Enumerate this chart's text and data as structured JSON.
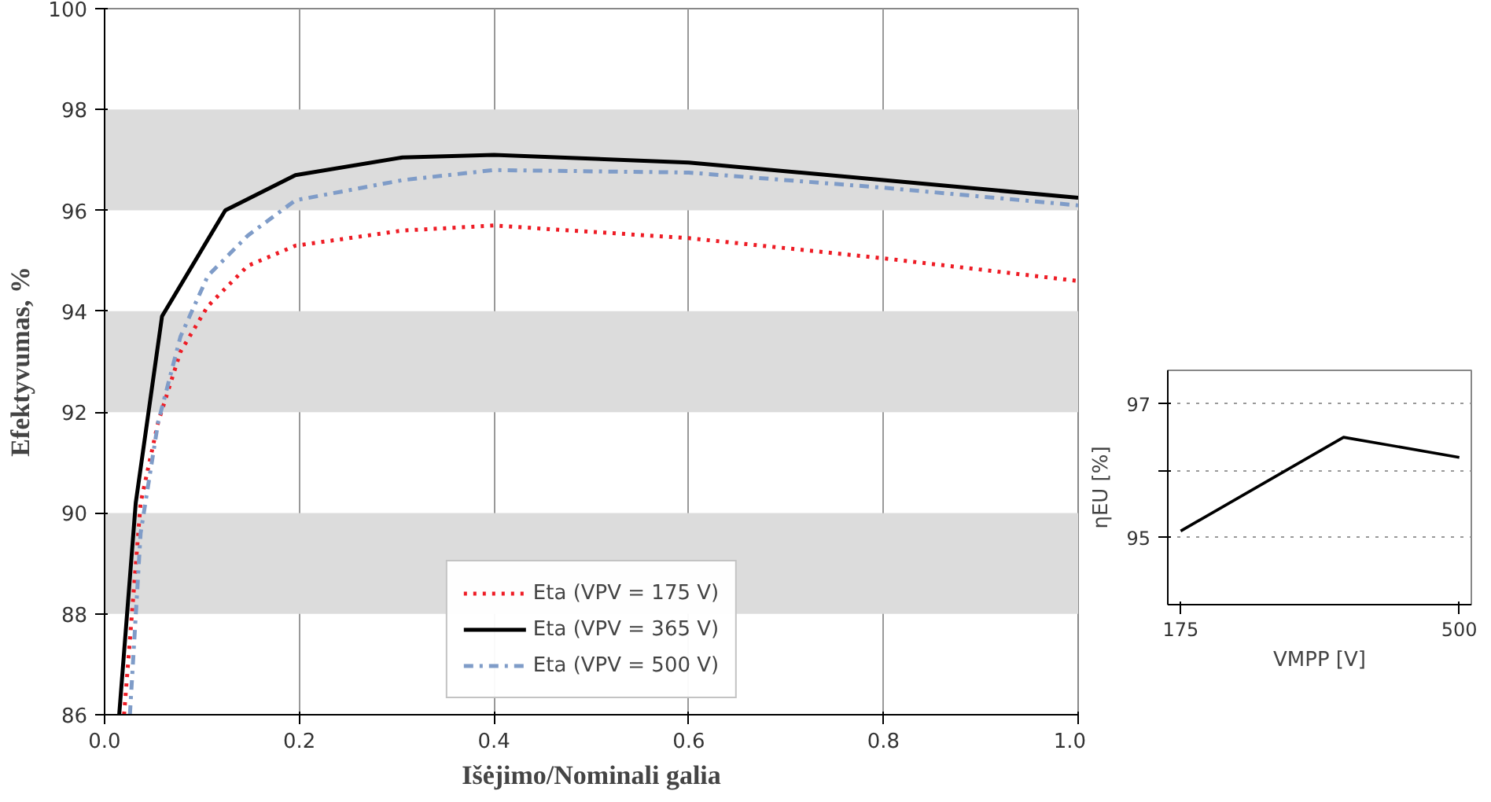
{
  "chart_data": [
    {
      "type": "line",
      "xlabel": "Išėjimo/Nominali galia",
      "ylabel": "Efektyvumas, %",
      "xlim": [
        0,
        1
      ],
      "ylim": [
        86,
        100
      ],
      "xticks": [
        {
          "value": 0,
          "label": "0.0"
        },
        0.2,
        0.4,
        0.6,
        0.8,
        {
          "value": 1,
          "label": "1.0"
        }
      ],
      "yticks": [
        86,
        88,
        90,
        92,
        94,
        96,
        98,
        100
      ],
      "grid": "x",
      "legend": "bottom",
      "bands": [
        {
          "axis": "y",
          "from": 88,
          "to": 90,
          "color": "#dcdcdc"
        },
        {
          "axis": "y",
          "from": 92,
          "to": 94,
          "color": "#dcdcdc"
        },
        {
          "axis": "y",
          "from": 96,
          "to": 98,
          "color": "#dcdcdc"
        }
      ],
      "x": [
        0.02,
        0.037,
        0.055,
        0.078,
        0.106,
        0.147,
        0.196,
        0.306,
        0.4,
        0.6,
        0.8,
        1.0
      ],
      "series": [
        {
          "name": "Eta (VPV = 175 V)",
          "color": "#ee1c25",
          "line_style": "dotted",
          "values": [
            86.0,
            90.2,
            91.8,
            93.2,
            94.1,
            94.9,
            95.3,
            95.6,
            95.7,
            95.45,
            95.05,
            94.6
          ]
        },
        {
          "name": "Eta (VPV = 365 V)",
          "color": "#000000",
          "line_style": "solid",
          "x": [
            0.015,
            0.032,
            0.059,
            0.124,
            0.196,
            0.306,
            0.4,
            0.6,
            0.8,
            1.0
          ],
          "values": [
            86.0,
            90.2,
            93.9,
            96.0,
            96.7,
            97.05,
            97.1,
            96.95,
            96.6,
            96.25
          ]
        },
        {
          "name": "Eta (VPV = 500 V)",
          "color": "#7f9cc8",
          "line_style": "dashdot",
          "x": [
            0.026,
            0.037,
            0.055,
            0.078,
            0.106,
            0.147,
            0.196,
            0.306,
            0.4,
            0.6,
            0.8,
            1.0
          ],
          "values": [
            86.0,
            89.6,
            91.8,
            93.5,
            94.7,
            95.5,
            96.2,
            96.6,
            96.8,
            96.75,
            96.45,
            96.1
          ]
        }
      ]
    },
    {
      "type": "line",
      "xlabel": "VMPP [V]",
      "ylabel": "ηEU [%]",
      "xlim": [
        160,
        514
      ],
      "ylim": [
        94,
        97.5
      ],
      "xticks": [
        175,
        500
      ],
      "yticks": [
        95,
        {
          "value": 96,
          "label": null
        },
        97
      ],
      "grid": "y",
      "x": [
        175,
        365,
        500
      ],
      "series": [
        {
          "color": "#000000",
          "values": [
            95.1,
            96.5,
            96.2
          ]
        }
      ]
    }
  ]
}
